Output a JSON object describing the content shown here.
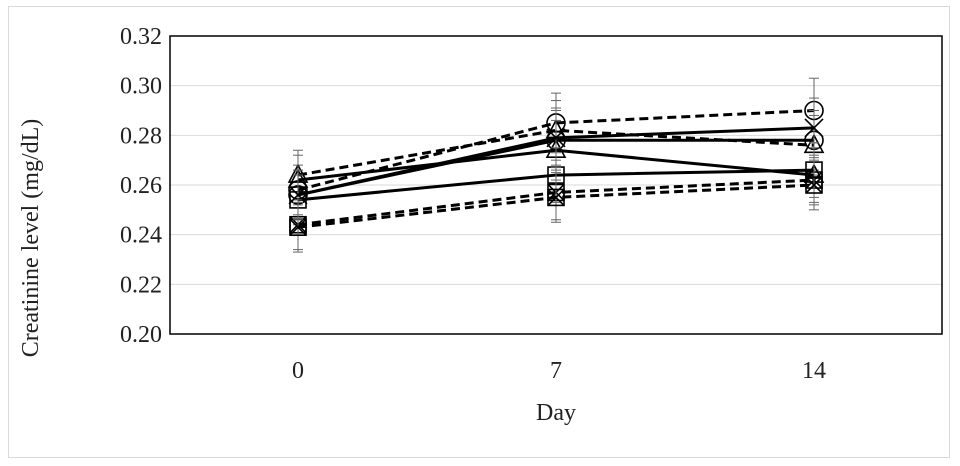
{
  "chart_data": {
    "type": "line",
    "title": "",
    "xlabel": "Day",
    "ylabel": "Creatinine level (mg/dL)",
    "x": [
      0,
      7,
      14
    ],
    "x_tick_labels": [
      "0",
      "7",
      "14"
    ],
    "ylim": [
      0.2,
      0.32
    ],
    "y_ticks": [
      0.2,
      0.22,
      0.24,
      0.26,
      0.28,
      0.3,
      0.32
    ],
    "y_tick_labels": [
      "0.20",
      "0.22",
      "0.24",
      "0.26",
      "0.28",
      "0.30",
      "0.32"
    ],
    "grid": true,
    "legend": "none",
    "series": [
      {
        "marker": "circle",
        "line": "dashed",
        "values": [
          0.258,
          0.285,
          0.29
        ],
        "error": [
          0.01,
          0.012,
          0.013
        ]
      },
      {
        "marker": "circle",
        "line": "solid",
        "values": [
          0.256,
          0.278,
          0.278
        ],
        "error": [
          0.01,
          0.012,
          0.012
        ]
      },
      {
        "marker": "triangle",
        "line": "dashed",
        "values": [
          0.264,
          0.282,
          0.276
        ],
        "error": [
          0.01,
          0.012,
          0.012
        ]
      },
      {
        "marker": "triangle",
        "line": "solid",
        "values": [
          0.262,
          0.274,
          0.264
        ],
        "error": [
          0.01,
          0.012,
          0.011
        ]
      },
      {
        "marker": "square",
        "line": "solid",
        "values": [
          0.254,
          0.264,
          0.266
        ],
        "error": [
          0.01,
          0.011,
          0.011
        ]
      },
      {
        "marker": "square-x",
        "line": "dashed",
        "values": [
          0.244,
          0.257,
          0.262
        ],
        "error": [
          0.01,
          0.011,
          0.01
        ]
      },
      {
        "marker": "square-x",
        "line": "dashed",
        "values": [
          0.243,
          0.255,
          0.26
        ],
        "error": [
          0.01,
          0.01,
          0.01
        ]
      },
      {
        "marker": "x",
        "line": "solid",
        "values": [
          0.256,
          0.279,
          0.283
        ],
        "error": [
          0.01,
          0.012,
          0.012
        ]
      }
    ]
  }
}
